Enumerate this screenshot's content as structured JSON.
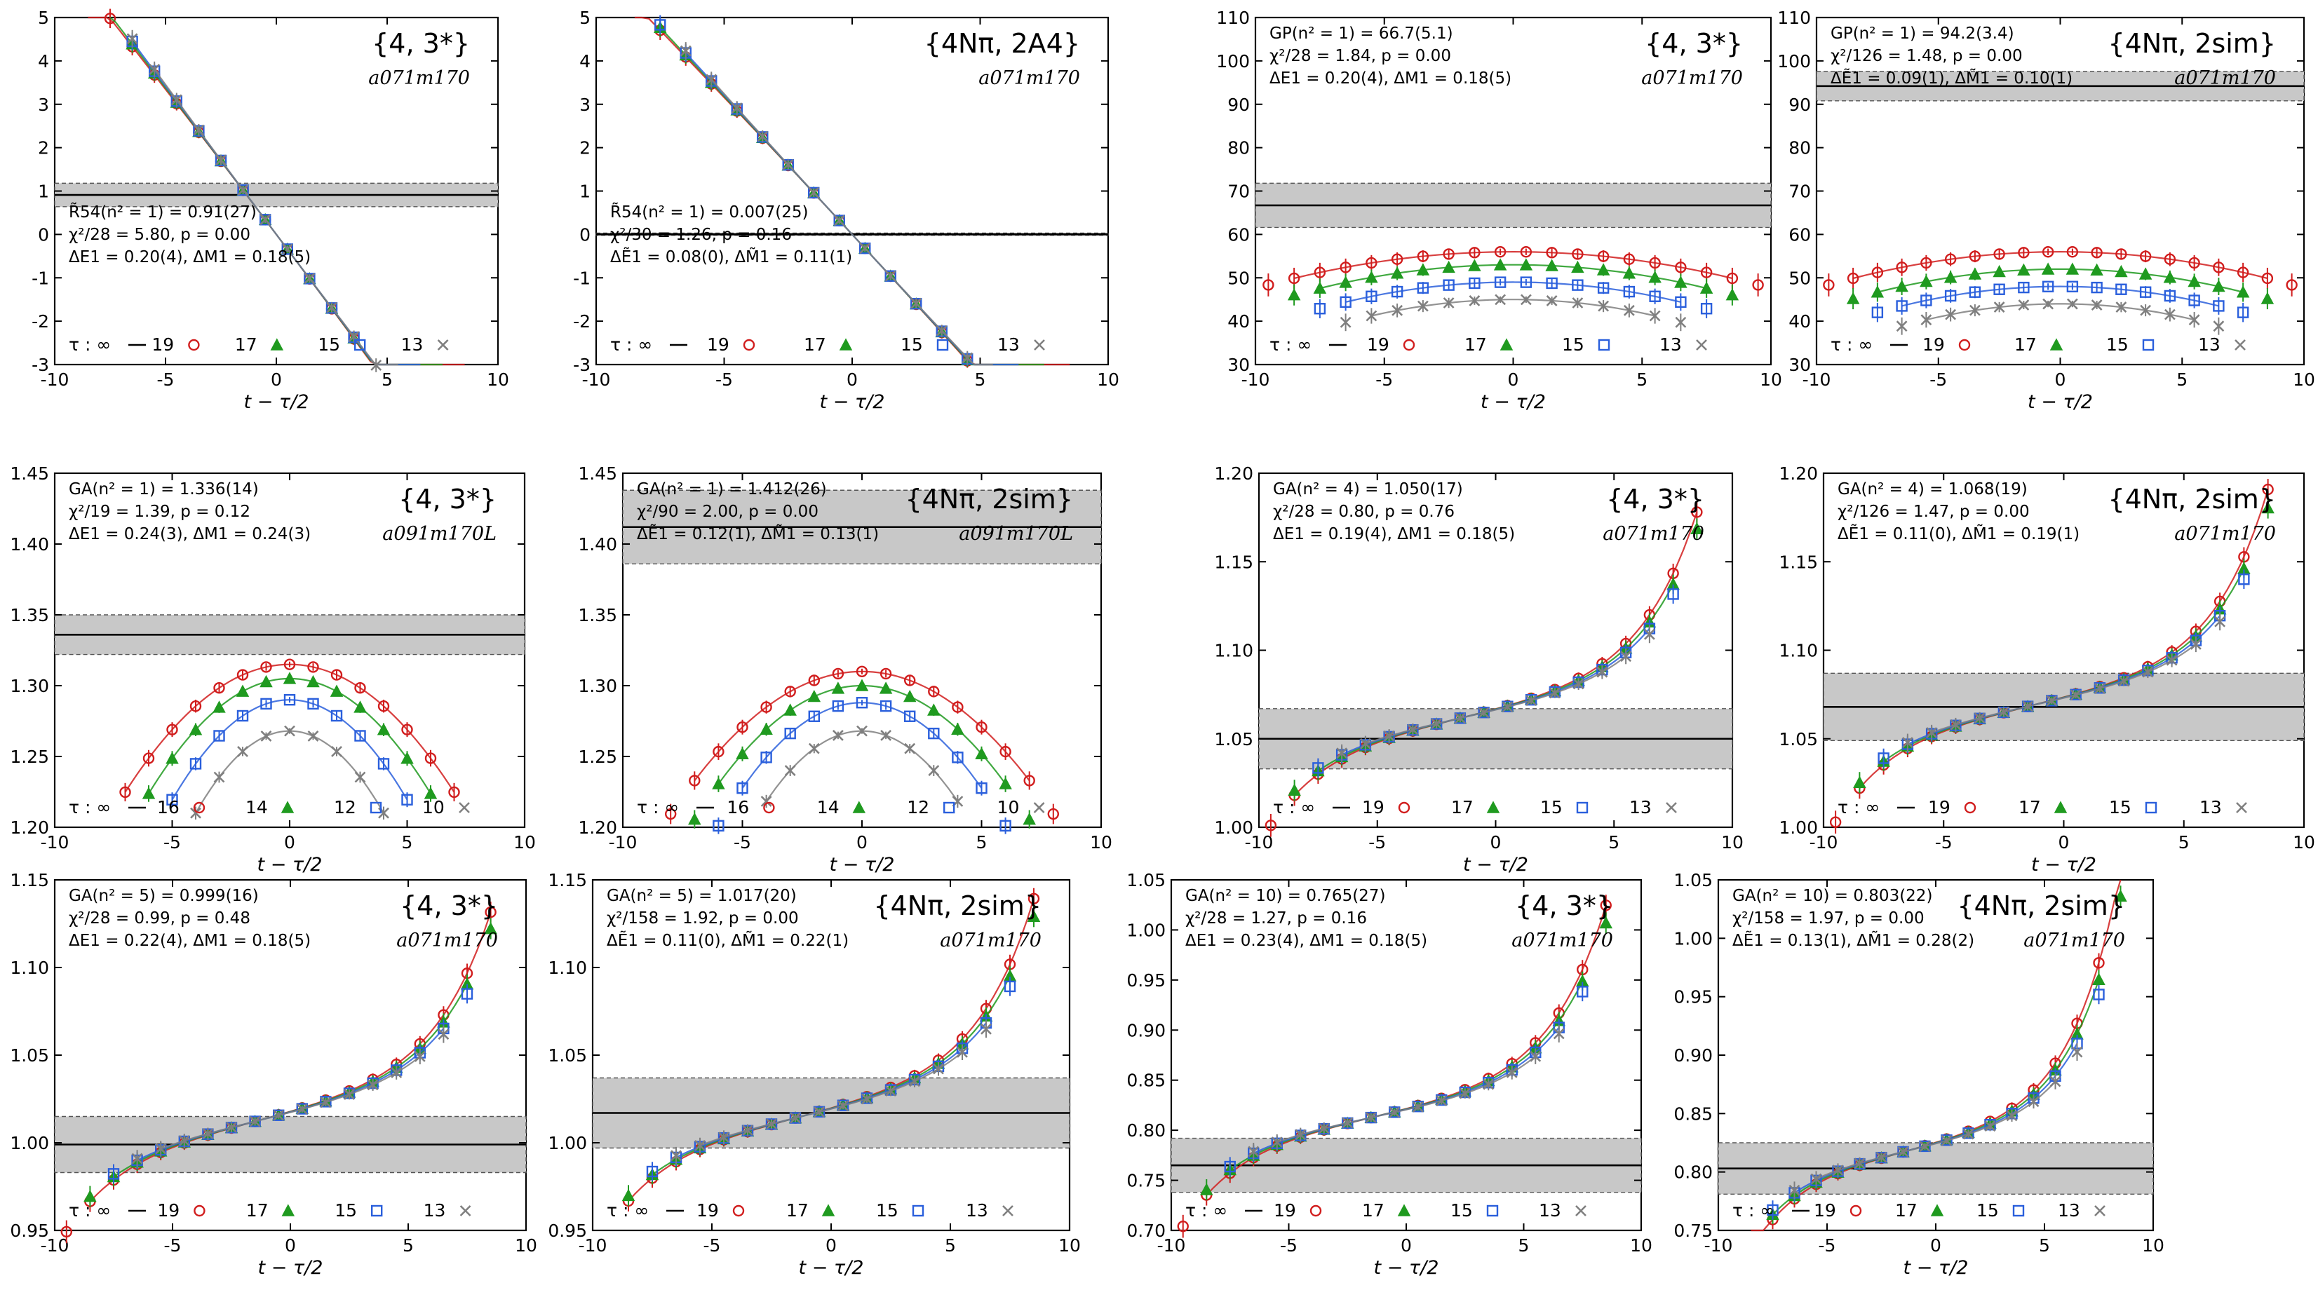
{
  "colors": {
    "tau19": "#d11d1d",
    "tau17": "#1f9a1f",
    "tau15": "#2a5fdc",
    "tau13": "#7f7f7f",
    "band": "#c8c8c8"
  },
  "x_axis_label": "t − τ/2",
  "chart_data": [
    {
      "type": "line",
      "id": "p1",
      "irrep": "{4, 3*}",
      "ensemble": "a071m170",
      "stats": [
        "R̃54(n² = 1) = 0.91(27)",
        "χ²/28 = 5.80, p = 0.00",
        "ΔE1 = 0.20(4), ΔM1 = 0.18(5)"
      ],
      "xlim": [
        -10,
        10
      ],
      "ylim": [
        -3,
        5
      ],
      "xticks": [
        "-10",
        "-5",
        "0",
        "5",
        "10"
      ],
      "yticks": [
        "-3",
        "-2",
        "-1",
        "0",
        "1",
        "2",
        "3",
        "4",
        "5"
      ],
      "band": {
        "center": 0.91,
        "err": 0.27
      },
      "zero_line": false,
      "legend": [
        "τ : ∞",
        "19",
        "17",
        "15",
        "13"
      ],
      "taus": [
        19,
        17,
        15,
        13
      ],
      "model": {
        "kind": "linear",
        "slope": -0.68,
        "offset": 0.0,
        "spread": 0.45,
        "sep": 1.0
      }
    },
    {
      "type": "line",
      "id": "p2",
      "irrep": "{4Nπ, 2A4}",
      "ensemble": "a071m170",
      "stats": [
        "R̃54(n² = 1) = 0.007(25)",
        "χ²/30 = 1.26, p = 0.16",
        "ΔẼ1 = 0.08(0), ΔM̃1 = 0.11(1)"
      ],
      "xlim": [
        -10,
        10
      ],
      "ylim": [
        -3,
        5
      ],
      "xticks": [
        "-10",
        "-5",
        "0",
        "5",
        "10"
      ],
      "yticks": [
        "-3",
        "-2",
        "-1",
        "0",
        "1",
        "2",
        "3",
        "4",
        "5"
      ],
      "band": {
        "center": 0.007,
        "err": 0.025
      },
      "zero_line": true,
      "legend": [
        "τ : ∞",
        "19",
        "17",
        "15",
        "13"
      ],
      "taus": [
        19,
        17,
        15,
        13
      ],
      "model": {
        "kind": "linear",
        "slope": -0.64,
        "offset": 0.0,
        "spread": 0.35,
        "sep": 1.0
      }
    },
    {
      "type": "line",
      "id": "p3",
      "irrep": "{4, 3*}",
      "ensemble": "a071m170",
      "stats": [
        "GP(n² = 1) = 66.7(5.1)",
        "χ²/28 = 1.84, p = 0.00",
        "ΔE1 = 0.20(4), ΔM1 = 0.18(5)"
      ],
      "xlim": [
        -10,
        10
      ],
      "ylim": [
        30,
        110
      ],
      "xticks": [
        "-10",
        "-5",
        "0",
        "5",
        "10"
      ],
      "yticks": [
        "30",
        "40",
        "50",
        "60",
        "70",
        "80",
        "90",
        "100",
        "110"
      ],
      "band": {
        "center": 66.7,
        "err": 5.1
      },
      "zero_line": false,
      "legend": [
        "τ : ∞",
        "19",
        "17",
        "15",
        "13"
      ],
      "taus": [
        19,
        17,
        15,
        13
      ],
      "model": {
        "kind": "dome",
        "peak": [
          56,
          53,
          49,
          45
        ],
        "drop": 0.2
      }
    },
    {
      "type": "line",
      "id": "p4",
      "irrep": "{4Nπ, 2sim}",
      "ensemble": "a071m170",
      "stats": [
        "GP(n² = 1) = 94.2(3.4)",
        "χ²/126 = 1.48, p = 0.00",
        "ΔẼ1 = 0.09(1), ΔM̃1 = 0.10(1)"
      ],
      "xlim": [
        -10,
        10
      ],
      "ylim": [
        30,
        110
      ],
      "xticks": [
        "-10",
        "-5",
        "0",
        "5",
        "10"
      ],
      "yticks": [
        "30",
        "40",
        "50",
        "60",
        "70",
        "80",
        "90",
        "100",
        "110"
      ],
      "band": {
        "center": 94.2,
        "err": 3.4
      },
      "zero_line": false,
      "legend": [
        "τ : ∞",
        "19",
        "17",
        "15",
        "13"
      ],
      "taus": [
        19,
        17,
        15,
        13
      ],
      "model": {
        "kind": "dome",
        "peak": [
          56,
          52,
          48,
          44
        ],
        "drop": 0.2
      }
    },
    {
      "type": "line",
      "id": "p5",
      "irrep": "{4, 3*}",
      "ensemble": "a091m170L",
      "stats": [
        "GA(n² = 1) = 1.336(14)",
        "χ²/19 = 1.39, p = 0.12",
        "ΔE1 = 0.24(3), ΔM1 = 0.24(3)"
      ],
      "xlim": [
        -10,
        10
      ],
      "ylim": [
        1.2,
        1.45
      ],
      "xticks": [
        "-10",
        "-5",
        "0",
        "5",
        "10"
      ],
      "yticks": [
        "1.20",
        "1.25",
        "1.30",
        "1.35",
        "1.40",
        "1.45"
      ],
      "band": {
        "center": 1.336,
        "err": 0.014
      },
      "zero_line": false,
      "legend": [
        "τ : ∞",
        "16",
        "14",
        "12",
        "10"
      ],
      "taus": [
        16,
        14,
        12,
        10
      ],
      "model": {
        "kind": "dome",
        "peak": [
          1.315,
          1.305,
          1.29,
          1.268
        ],
        "drop": 0.14
      }
    },
    {
      "type": "line",
      "id": "p6",
      "irrep": "{4Nπ, 2sim}",
      "ensemble": "a091m170L",
      "stats": [
        "GA(n² = 1) = 1.412(26)",
        "χ²/90 = 2.00, p = 0.00",
        "ΔẼ1 = 0.12(1), ΔM̃1 = 0.13(1)"
      ],
      "xlim": [
        -10,
        10
      ],
      "ylim": [
        1.2,
        1.45
      ],
      "xticks": [
        "-10",
        "-5",
        "0",
        "5",
        "10"
      ],
      "yticks": [
        "1.20",
        "1.25",
        "1.30",
        "1.35",
        "1.40",
        "1.45"
      ],
      "band": {
        "center": 1.412,
        "err": 0.026
      },
      "zero_line": false,
      "legend": [
        "τ : ∞",
        "16",
        "14",
        "12",
        "10"
      ],
      "taus": [
        16,
        14,
        12,
        10
      ],
      "model": {
        "kind": "dome",
        "peak": [
          1.31,
          1.3,
          1.288,
          1.268
        ],
        "drop": 0.12
      }
    },
    {
      "type": "line",
      "id": "p7",
      "irrep": "{4, 3*}",
      "ensemble": "a071m170",
      "stats": [
        "GA(n² = 4) = 1.050(17)",
        "χ²/28 = 0.80, p = 0.76",
        "ΔE1 = 0.19(4), ΔM1 = 0.18(5)"
      ],
      "xlim": [
        -10,
        10
      ],
      "ylim": [
        1.0,
        1.2
      ],
      "xticks": [
        "-10",
        "-5",
        "0",
        "5",
        "10"
      ],
      "yticks": [
        "1.00",
        "1.05",
        "1.10",
        "1.15",
        "1.20"
      ],
      "band": {
        "center": 1.05,
        "err": 0.017
      },
      "zero_line": false,
      "legend": [
        "τ : ∞",
        "19",
        "17",
        "15",
        "13"
      ],
      "taus": [
        19,
        17,
        15,
        13
      ],
      "model": {
        "kind": "exp",
        "base": 1.065,
        "slope": 0.0022,
        "amp": 0.008,
        "rate": 0.42,
        "sep": 0.25
      }
    },
    {
      "type": "line",
      "id": "p8",
      "irrep": "{4Nπ, 2sim}",
      "ensemble": "a071m170",
      "stats": [
        "GA(n² = 4) = 1.068(19)",
        "χ²/126 = 1.47, p = 0.00",
        "ΔẼ1 = 0.11(0), ΔM̃1 = 0.19(1)"
      ],
      "xlim": [
        -10,
        10
      ],
      "ylim": [
        1.0,
        1.2
      ],
      "xticks": [
        "-10",
        "-5",
        "0",
        "5",
        "10"
      ],
      "yticks": [
        "1.00",
        "1.05",
        "1.10",
        "1.15",
        "1.20"
      ],
      "band": {
        "center": 1.068,
        "err": 0.019
      },
      "zero_line": false,
      "legend": [
        "τ : ∞",
        "19",
        "17",
        "15",
        "13"
      ],
      "taus": [
        19,
        17,
        15,
        13
      ],
      "model": {
        "kind": "exp",
        "base": 1.072,
        "slope": 0.0024,
        "amp": 0.007,
        "rate": 0.45,
        "sep": 0.25
      }
    },
    {
      "type": "line",
      "id": "p9",
      "irrep": "{4, 3*}",
      "ensemble": "a071m170",
      "stats": [
        "GA(n² = 5) = 0.999(16)",
        "χ²/28 = 0.99, p = 0.48",
        "ΔE1 = 0.22(4), ΔM1 = 0.18(5)"
      ],
      "xlim": [
        -10,
        10
      ],
      "ylim": [
        0.95,
        1.15
      ],
      "xticks": [
        "-10",
        "-5",
        "0",
        "5",
        "10"
      ],
      "yticks": [
        "0.95",
        "1.00",
        "1.05",
        "1.10",
        "1.15"
      ],
      "band": {
        "center": 0.999,
        "err": 0.016
      },
      "zero_line": false,
      "legend": [
        "τ : ∞",
        "19",
        "17",
        "15",
        "13"
      ],
      "taus": [
        19,
        17,
        15,
        13
      ],
      "model": {
        "kind": "exp",
        "base": 1.016,
        "slope": 0.0025,
        "amp": 0.008,
        "rate": 0.42,
        "sep": 0.25
      }
    },
    {
      "type": "line",
      "id": "p10",
      "irrep": "{4Nπ, 2sim}",
      "ensemble": "a071m170",
      "stats": [
        "GA(n² = 5) = 1.017(20)",
        "χ²/158 = 1.92, p = 0.00",
        "ΔẼ1 = 0.11(0), ΔM̃1 = 0.22(1)"
      ],
      "xlim": [
        -10,
        10
      ],
      "ylim": [
        0.95,
        1.15
      ],
      "xticks": [
        "-10",
        "-5",
        "0",
        "5",
        "10"
      ],
      "yticks": [
        "0.95",
        "1.00",
        "1.05",
        "1.10",
        "1.15"
      ],
      "band": {
        "center": 1.017,
        "err": 0.02
      },
      "zero_line": false,
      "legend": [
        "τ : ∞",
        "19",
        "17",
        "15",
        "13"
      ],
      "taus": [
        19,
        17,
        15,
        13
      ],
      "model": {
        "kind": "exp",
        "base": 1.018,
        "slope": 0.0025,
        "amp": 0.008,
        "rate": 0.43,
        "sep": 0.25
      }
    },
    {
      "type": "line",
      "id": "p11",
      "irrep": "{4, 3*}",
      "ensemble": "a071m170",
      "stats": [
        "GA(n² = 10) = 0.765(27)",
        "χ²/28 = 1.27, p = 0.16",
        "ΔE1 = 0.23(4), ΔM1 = 0.18(5)"
      ],
      "xlim": [
        -10,
        10
      ],
      "ylim": [
        0.7,
        1.05
      ],
      "xticks": [
        "-10",
        "-5",
        "0",
        "5",
        "10"
      ],
      "yticks": [
        "0.70",
        "0.75",
        "0.80",
        "0.85",
        "0.90",
        "0.95",
        "1.00",
        "1.05"
      ],
      "band": {
        "center": 0.765,
        "err": 0.027
      },
      "zero_line": false,
      "legend": [
        "τ : ∞",
        "19",
        "17",
        "15",
        "13"
      ],
      "taus": [
        19,
        17,
        15,
        13
      ],
      "model": {
        "kind": "exp",
        "base": 0.818,
        "slope": 0.0035,
        "amp": 0.015,
        "rate": 0.42,
        "sep": 0.25
      }
    },
    {
      "type": "line",
      "id": "p12",
      "irrep": "{4Nπ, 2sim}",
      "ensemble": "a071m170",
      "stats": [
        "GA(n² = 10) = 0.803(22)",
        "χ²/158 = 1.97, p = 0.00",
        "ΔẼ1 = 0.13(1), ΔM̃1 = 0.28(2)"
      ],
      "xlim": [
        -10,
        10
      ],
      "ylim": [
        0.75,
        1.05
      ],
      "xticks": [
        "-10",
        "-5",
        "0",
        "5",
        "10"
      ],
      "yticks": [
        "0.75",
        "0.80",
        "0.85",
        "0.90",
        "0.95",
        "1.00",
        "1.05"
      ],
      "band": {
        "center": 0.803,
        "err": 0.022
      },
      "zero_line": false,
      "legend": [
        "τ : ∞",
        "19",
        "17",
        "15",
        "13"
      ],
      "taus": [
        19,
        17,
        15,
        13
      ],
      "model": {
        "kind": "exp",
        "base": 0.822,
        "slope": 0.003,
        "amp": 0.015,
        "rate": 0.45,
        "sep": 0.25
      }
    }
  ]
}
